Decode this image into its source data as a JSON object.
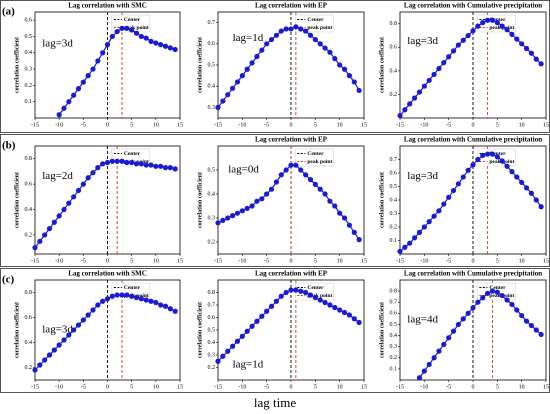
{
  "xlabel": "lag time",
  "chart_data": [
    {
      "type": "line",
      "panel": "(a)",
      "title": "Lag correlation with SMC",
      "annotation": "lag=3d",
      "ylabel": "correlation coefficient",
      "xlim": [
        -15,
        15
      ],
      "xticks": [
        -15,
        -10,
        -5,
        0,
        5,
        10,
        15
      ],
      "ylim": [
        0,
        0.65
      ],
      "yticks": [
        0.1,
        0.2,
        0.3,
        0.4,
        0.5,
        0.6
      ],
      "center": 0,
      "peak": 3,
      "legend": [
        "Center",
        "peak point"
      ],
      "color": "#1a1ad6",
      "x": [
        -10,
        -9,
        -8,
        -7,
        -6,
        -5,
        -4,
        -3,
        -2,
        -1,
        0,
        1,
        2,
        3,
        4,
        5,
        6,
        7,
        8,
        9,
        10,
        11,
        12,
        13,
        14
      ],
      "values": [
        0.02,
        0.06,
        0.1,
        0.14,
        0.18,
        0.22,
        0.26,
        0.3,
        0.35,
        0.4,
        0.45,
        0.5,
        0.53,
        0.55,
        0.55,
        0.54,
        0.52,
        0.5,
        0.49,
        0.47,
        0.46,
        0.45,
        0.44,
        0.43,
        0.42
      ]
    },
    {
      "type": "line",
      "title": "Lag correlation with EP",
      "annotation": "lag=1d",
      "ylabel": "correlation coefficient",
      "xlim": [
        -15,
        15
      ],
      "xticks": [
        -15,
        -10,
        -5,
        0,
        5,
        10,
        15
      ],
      "ylim": [
        0.25,
        0.75
      ],
      "yticks": [
        0.3,
        0.4,
        0.5,
        0.6,
        0.7
      ],
      "center": 0,
      "peak": 1,
      "legend": [
        "Center",
        "peak point"
      ],
      "color": "#1a1ad6",
      "x": [
        -15,
        -14,
        -13,
        -12,
        -11,
        -10,
        -9,
        -8,
        -7,
        -6,
        -5,
        -4,
        -3,
        -2,
        -1,
        0,
        1,
        2,
        3,
        4,
        5,
        6,
        7,
        8,
        9,
        10,
        11,
        12,
        13,
        14
      ],
      "values": [
        0.3,
        0.33,
        0.36,
        0.39,
        0.42,
        0.45,
        0.48,
        0.51,
        0.54,
        0.57,
        0.6,
        0.62,
        0.64,
        0.66,
        0.67,
        0.67,
        0.68,
        0.67,
        0.66,
        0.64,
        0.62,
        0.6,
        0.58,
        0.56,
        0.53,
        0.5,
        0.48,
        0.45,
        0.42,
        0.38
      ]
    },
    {
      "type": "line",
      "title": "Lag correlation with Cumulative precipitation",
      "annotation": "lag=3d",
      "ylabel": "correlation coefficient",
      "xlim": [
        -15,
        15
      ],
      "xticks": [
        -15,
        -10,
        -5,
        0,
        5,
        10,
        15
      ],
      "ylim": [
        0,
        0.9
      ],
      "yticks": [
        0.2,
        0.4,
        0.6,
        0.8
      ],
      "center": 0,
      "peak": 3,
      "legend": [
        "Center",
        "peak point"
      ],
      "color": "#1a1ad6",
      "x": [
        -15,
        -14,
        -13,
        -12,
        -11,
        -10,
        -9,
        -8,
        -7,
        -6,
        -5,
        -4,
        -3,
        -2,
        -1,
        0,
        1,
        2,
        3,
        4,
        5,
        6,
        7,
        8,
        9,
        10,
        11,
        12,
        13,
        14
      ],
      "values": [
        0.02,
        0.07,
        0.12,
        0.17,
        0.22,
        0.27,
        0.32,
        0.37,
        0.42,
        0.47,
        0.52,
        0.57,
        0.62,
        0.66,
        0.7,
        0.74,
        0.78,
        0.81,
        0.83,
        0.83,
        0.81,
        0.78,
        0.75,
        0.71,
        0.67,
        0.63,
        0.59,
        0.55,
        0.5,
        0.46
      ]
    },
    {
      "type": "line",
      "panel": "(b)",
      "annotation": "lag=2d",
      "ylabel": "correlation coefficient",
      "xlim": [
        -15,
        15
      ],
      "xticks": [
        -15,
        -10,
        -5,
        0,
        5,
        10,
        15
      ],
      "ylim": [
        0.05,
        0.9
      ],
      "yticks": [
        0.2,
        0.4,
        0.6,
        0.8
      ],
      "center": 0,
      "peak": 2,
      "legend": [
        "Center",
        "peak point"
      ],
      "color": "#1a1ad6",
      "x": [
        -15,
        -14,
        -13,
        -12,
        -11,
        -10,
        -9,
        -8,
        -7,
        -6,
        -5,
        -4,
        -3,
        -2,
        -1,
        0,
        1,
        2,
        3,
        4,
        5,
        6,
        7,
        8,
        9,
        10,
        11,
        12,
        13,
        14
      ],
      "values": [
        0.1,
        0.15,
        0.2,
        0.25,
        0.3,
        0.35,
        0.4,
        0.45,
        0.5,
        0.55,
        0.6,
        0.65,
        0.69,
        0.73,
        0.76,
        0.77,
        0.78,
        0.78,
        0.78,
        0.77,
        0.77,
        0.76,
        0.76,
        0.75,
        0.75,
        0.74,
        0.74,
        0.73,
        0.73,
        0.72
      ]
    },
    {
      "type": "line",
      "title": "Lag correlation with EP",
      "annotation": "lag=0d",
      "ylabel": "correlation coefficient",
      "xlim": [
        -15,
        15
      ],
      "xticks": [
        -15,
        -10,
        -5,
        0,
        5,
        10,
        15
      ],
      "ylim": [
        0.15,
        0.6
      ],
      "yticks": [
        0.2,
        0.3,
        0.4,
        0.5
      ],
      "center": 0,
      "peak": 0,
      "legend": [
        "Center",
        "peak point"
      ],
      "color": "#1a1ad6",
      "x": [
        -15,
        -14,
        -13,
        -12,
        -11,
        -10,
        -9,
        -8,
        -7,
        -6,
        -5,
        -4,
        -3,
        -2,
        -1,
        0,
        1,
        2,
        3,
        4,
        5,
        6,
        7,
        8,
        9,
        10,
        11,
        12,
        13,
        14
      ],
      "values": [
        0.28,
        0.29,
        0.3,
        0.31,
        0.32,
        0.33,
        0.34,
        0.35,
        0.37,
        0.38,
        0.4,
        0.42,
        0.45,
        0.48,
        0.5,
        0.52,
        0.52,
        0.5,
        0.48,
        0.46,
        0.44,
        0.42,
        0.4,
        0.37,
        0.35,
        0.32,
        0.3,
        0.27,
        0.24,
        0.21
      ]
    },
    {
      "type": "line",
      "title": "Lag correlation with Cumulative precipitation",
      "annotation": "lag=3d",
      "ylabel": "correlation coefficient",
      "xlim": [
        -15,
        15
      ],
      "xticks": [
        -15,
        -10,
        -5,
        0,
        5,
        10,
        15
      ],
      "ylim": [
        0,
        0.8
      ],
      "yticks": [
        0.1,
        0.2,
        0.3,
        0.4,
        0.5,
        0.6,
        0.7
      ],
      "center": 0,
      "peak": 3,
      "legend": [
        "Center",
        "peak point"
      ],
      "color": "#1a1ad6",
      "x": [
        -15,
        -14,
        -13,
        -12,
        -11,
        -10,
        -9,
        -8,
        -7,
        -6,
        -5,
        -4,
        -3,
        -2,
        -1,
        0,
        1,
        2,
        3,
        4,
        5,
        6,
        7,
        8,
        9,
        10,
        11,
        12,
        13,
        14
      ],
      "values": [
        0.02,
        0.05,
        0.08,
        0.12,
        0.16,
        0.2,
        0.24,
        0.28,
        0.32,
        0.37,
        0.42,
        0.47,
        0.52,
        0.57,
        0.62,
        0.66,
        0.7,
        0.73,
        0.74,
        0.74,
        0.72,
        0.69,
        0.65,
        0.61,
        0.57,
        0.53,
        0.49,
        0.45,
        0.4,
        0.35
      ]
    },
    {
      "type": "line",
      "panel": "(c)",
      "title": "Lag correlation with SMC",
      "annotation": "lag=3d",
      "ylabel": "correlation coefficient",
      "xlim": [
        -15,
        15
      ],
      "xticks": [
        -15,
        -10,
        -5,
        0,
        5,
        10,
        15
      ],
      "ylim": [
        0.1,
        0.9
      ],
      "yticks": [
        0.2,
        0.4,
        0.6,
        0.8
      ],
      "center": 0,
      "peak": 3,
      "legend": [
        "Center",
        "peak point"
      ],
      "color": "#1a1ad6",
      "x": [
        -15,
        -14,
        -13,
        -12,
        -11,
        -10,
        -9,
        -8,
        -7,
        -6,
        -5,
        -4,
        -3,
        -2,
        -1,
        0,
        1,
        2,
        3,
        4,
        5,
        6,
        7,
        8,
        9,
        10,
        11,
        12,
        13,
        14
      ],
      "values": [
        0.18,
        0.22,
        0.26,
        0.3,
        0.34,
        0.38,
        0.42,
        0.46,
        0.5,
        0.54,
        0.58,
        0.62,
        0.66,
        0.7,
        0.73,
        0.75,
        0.77,
        0.78,
        0.78,
        0.78,
        0.77,
        0.76,
        0.75,
        0.74,
        0.73,
        0.72,
        0.7,
        0.69,
        0.67,
        0.65
      ]
    },
    {
      "type": "line",
      "title": "Lag correlation with EP",
      "annotation": "lag=1d",
      "ylabel": "correlation coefficient",
      "xlim": [
        -15,
        15
      ],
      "xticks": [
        -15,
        -10,
        -5,
        0,
        5,
        10,
        15
      ],
      "ylim": [
        0.1,
        0.9
      ],
      "yticks": [
        0.2,
        0.3,
        0.4,
        0.5,
        0.6,
        0.7,
        0.8
      ],
      "center": 0,
      "peak": 1,
      "legend": [
        "Center",
        "peak point"
      ],
      "color": "#1a1ad6",
      "x": [
        -15,
        -14,
        -13,
        -12,
        -11,
        -10,
        -9,
        -8,
        -7,
        -6,
        -5,
        -4,
        -3,
        -2,
        -1,
        0,
        1,
        2,
        3,
        4,
        5,
        6,
        7,
        8,
        9,
        10,
        11,
        12,
        13,
        14
      ],
      "values": [
        0.25,
        0.29,
        0.33,
        0.37,
        0.41,
        0.45,
        0.49,
        0.53,
        0.57,
        0.61,
        0.65,
        0.69,
        0.73,
        0.77,
        0.8,
        0.82,
        0.82,
        0.81,
        0.8,
        0.78,
        0.76,
        0.74,
        0.72,
        0.7,
        0.68,
        0.66,
        0.64,
        0.62,
        0.59,
        0.56
      ]
    },
    {
      "type": "line",
      "title": "Lag correlation with Cumulative precipitation",
      "annotation": "lag=4d",
      "ylabel": "correlation coefficient",
      "xlim": [
        -15,
        15
      ],
      "xticks": [
        -15,
        -10,
        -5,
        0,
        5,
        10,
        15
      ],
      "ylim": [
        0,
        0.9
      ],
      "yticks": [
        0.1,
        0.2,
        0.3,
        0.4,
        0.5,
        0.6,
        0.7,
        0.8
      ],
      "center": 0,
      "peak": 4,
      "legend": [
        "Center",
        "peak point"
      ],
      "color": "#1a1ad6",
      "x": [
        -11,
        -10,
        -9,
        -8,
        -7,
        -6,
        -5,
        -4,
        -3,
        -2,
        -1,
        0,
        1,
        2,
        3,
        4,
        5,
        6,
        7,
        8,
        9,
        10,
        11,
        12,
        13,
        14
      ],
      "values": [
        0.02,
        0.08,
        0.14,
        0.2,
        0.26,
        0.32,
        0.38,
        0.44,
        0.5,
        0.55,
        0.6,
        0.65,
        0.7,
        0.74,
        0.78,
        0.8,
        0.79,
        0.76,
        0.72,
        0.68,
        0.63,
        0.58,
        0.53,
        0.49,
        0.45,
        0.41
      ]
    }
  ]
}
